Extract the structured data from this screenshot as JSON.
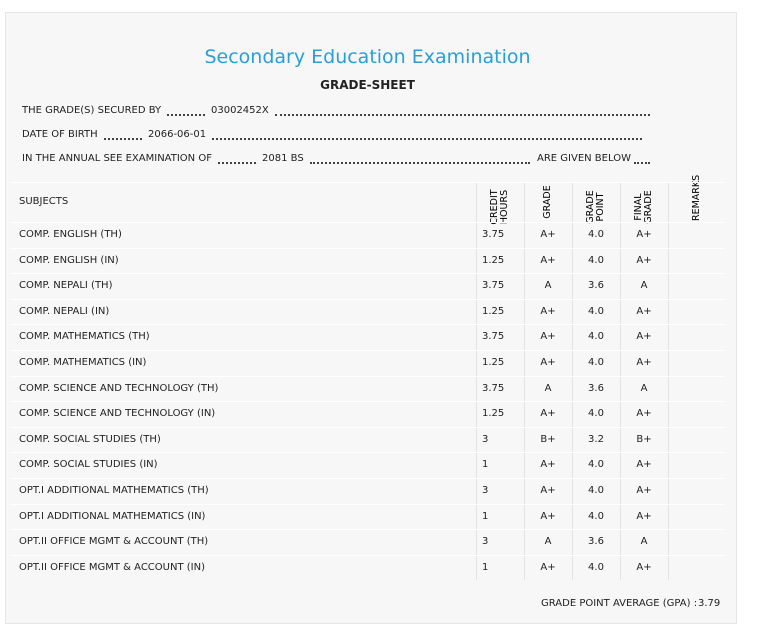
{
  "header": {
    "title": "Secondary Education Examination",
    "subtitle": "GRADE-SHEET"
  },
  "info": [
    {
      "label": "THE GRADE(S) SECURED BY",
      "value": "03002452X"
    },
    {
      "label": "DATE OF BIRTH",
      "value": "2066-06-01"
    },
    {
      "label": "IN THE ANNUAL SEE EXAMINATION OF",
      "value": "2081 BS",
      "suffix": "ARE GIVEN BELOW"
    }
  ],
  "table": {
    "columns": [
      "SUBJECTS",
      "CREDIT HOURS",
      "GRADE",
      "GRADE POINT",
      "FINAL GRADE",
      "REMARKS"
    ],
    "rows": [
      [
        "COMP. ENGLISH (TH)",
        "3.75",
        "A+",
        "4.0",
        "A+"
      ],
      [
        "COMP. ENGLISH (IN)",
        "1.25",
        "A+",
        "4.0",
        "A+"
      ],
      [
        "COMP. NEPALI (TH)",
        "3.75",
        "A",
        "3.6",
        "A"
      ],
      [
        "COMP. NEPALI (IN)",
        "1.25",
        "A+",
        "4.0",
        "A+"
      ],
      [
        "COMP. MATHEMATICS (TH)",
        "3.75",
        "A+",
        "4.0",
        "A+"
      ],
      [
        "COMP. MATHEMATICS (IN)",
        "1.25",
        "A+",
        "4.0",
        "A+"
      ],
      [
        "COMP. SCIENCE AND TECHNOLOGY (TH)",
        "3.75",
        "A",
        "3.6",
        "A"
      ],
      [
        "COMP. SCIENCE AND TECHNOLOGY (IN)",
        "1.25",
        "A+",
        "4.0",
        "A+"
      ],
      [
        "COMP. SOCIAL STUDIES (TH)",
        "3",
        "B+",
        "3.2",
        "B+"
      ],
      [
        "COMP. SOCIAL STUDIES (IN)",
        "1",
        "A+",
        "4.0",
        "A+"
      ],
      [
        "OPT.I ADDITIONAL MATHEMATICS (TH)",
        "3",
        "A+",
        "4.0",
        "A+"
      ],
      [
        "OPT.I ADDITIONAL MATHEMATICS (IN)",
        "1",
        "A+",
        "4.0",
        "A+"
      ],
      [
        "OPT.II OFFICE MGMT & ACCOUNT (TH)",
        "3",
        "A",
        "3.6",
        "A"
      ],
      [
        "OPT.II OFFICE MGMT & ACCOUNT (IN)",
        "1",
        "A+",
        "4.0",
        "A+"
      ]
    ]
  },
  "footer": {
    "label": "GRADE POINT AVERAGE (GPA) :",
    "value": "3.79"
  }
}
